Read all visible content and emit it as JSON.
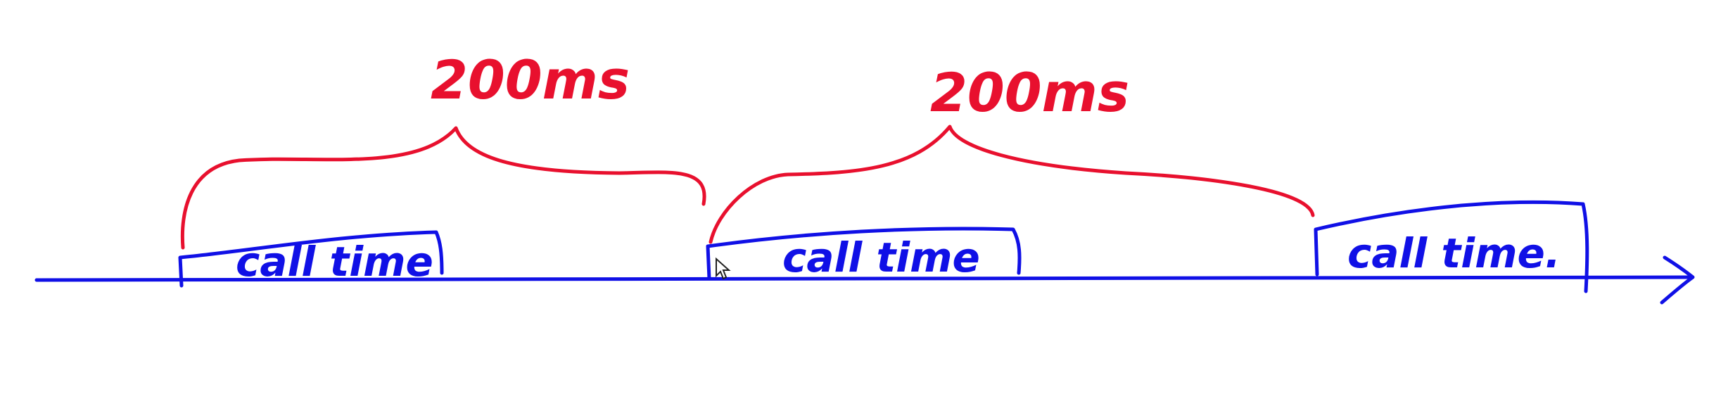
{
  "colors": {
    "timeline": "#1010e6",
    "interval": "#e8102e"
  },
  "blocks": [
    {
      "label": "call time"
    },
    {
      "label": "call time"
    },
    {
      "label": "call time."
    }
  ],
  "intervals": [
    {
      "label": "200ms"
    },
    {
      "label": "200ms"
    }
  ],
  "icons": {
    "cursor": "mouse-pointer-icon",
    "arrow": "arrowhead-icon"
  }
}
